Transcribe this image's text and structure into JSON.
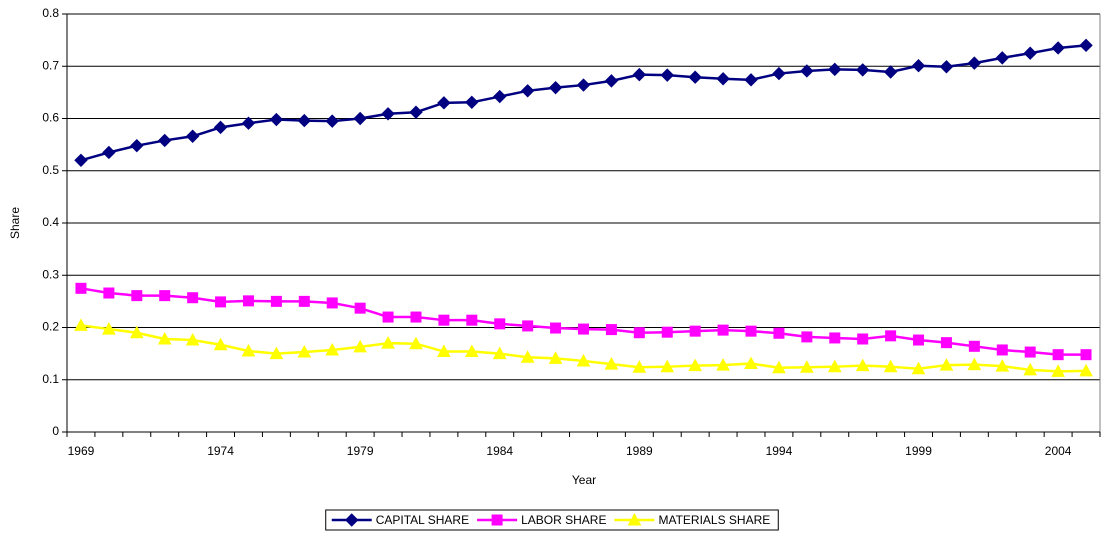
{
  "chart_data": {
    "type": "line",
    "x_label": "Year",
    "y_label": "Share",
    "categories": [
      "1969",
      null,
      null,
      null,
      null,
      "1974",
      null,
      null,
      null,
      null,
      "1979",
      null,
      null,
      null,
      null,
      "1984",
      null,
      null,
      null,
      null,
      "1989",
      null,
      null,
      null,
      null,
      "1994",
      null,
      null,
      null,
      null,
      "1999",
      null,
      null,
      null,
      null,
      "2004",
      null
    ],
    "series": [
      {
        "name": "CAPITAL SHARE",
        "color": "#000080",
        "marker": "diamond",
        "values": [
          0.52,
          0.535,
          0.548,
          0.558,
          0.566,
          0.583,
          0.591,
          0.598,
          0.596,
          0.595,
          0.6,
          0.609,
          0.612,
          0.63,
          0.631,
          0.642,
          0.653,
          0.659,
          0.664,
          0.672,
          0.684,
          0.683,
          0.679,
          0.676,
          0.674,
          0.686,
          0.691,
          0.694,
          0.693,
          0.689,
          0.701,
          0.699,
          0.706,
          0.716,
          0.725,
          0.735,
          0.74
        ]
      },
      {
        "name": "LABOR SHARE",
        "color": "#ff00ff",
        "marker": "square",
        "values": [
          0.275,
          0.266,
          0.261,
          0.261,
          0.257,
          0.249,
          0.251,
          0.25,
          0.25,
          0.247,
          0.237,
          0.22,
          0.22,
          0.214,
          0.214,
          0.207,
          0.203,
          0.199,
          0.197,
          0.196,
          0.19,
          0.191,
          0.193,
          0.195,
          0.193,
          0.189,
          0.182,
          0.18,
          0.178,
          0.184,
          0.176,
          0.171,
          0.164,
          0.157,
          0.153,
          0.148,
          0.148
        ]
      },
      {
        "name": "MATERIALS SHARE",
        "color": "#ffff00",
        "marker": "triangle",
        "values": [
          0.204,
          0.197,
          0.19,
          0.178,
          0.176,
          0.167,
          0.155,
          0.15,
          0.153,
          0.157,
          0.163,
          0.17,
          0.169,
          0.154,
          0.154,
          0.15,
          0.143,
          0.141,
          0.136,
          0.13,
          0.124,
          0.125,
          0.127,
          0.128,
          0.131,
          0.123,
          0.124,
          0.125,
          0.127,
          0.125,
          0.121,
          0.128,
          0.129,
          0.126,
          0.119,
          0.116,
          0.117
        ]
      }
    ],
    "ylim": [
      0,
      0.8
    ],
    "yticks": [
      0,
      0.1,
      0.2,
      0.3,
      0.4,
      0.5,
      0.6,
      0.7,
      0.8
    ],
    "grid": true,
    "legend": "bottom"
  }
}
